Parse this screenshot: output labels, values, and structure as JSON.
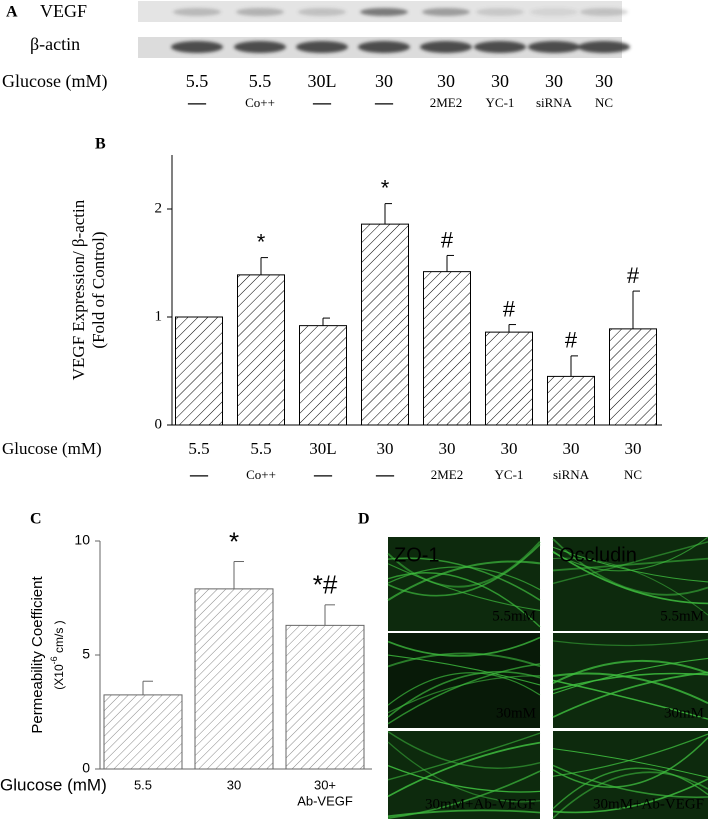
{
  "panel_a": {
    "label": "A",
    "rows": [
      "VEGF",
      "β-actin"
    ],
    "glucose_label": "Glucose (mM)",
    "glucose": [
      "5.5",
      "5.5",
      "30L",
      "30",
      "30",
      "30",
      "30",
      "30"
    ],
    "treatments": [
      "—",
      "Co++",
      "—",
      "—",
      "2ME2",
      "YC-1",
      "siRNA",
      "NC"
    ]
  },
  "chart_data": [
    {
      "type": "bar",
      "panel": "B",
      "y_label": [
        "VEGF Expression/ β-actin",
        "(Fold of Control)"
      ],
      "x_label": "Glucose (mM)",
      "categories": [
        "5.5",
        "5.5",
        "30L",
        "30",
        "30",
        "30",
        "30",
        "30"
      ],
      "treatments": [
        "—",
        "Co++",
        "—",
        "—",
        "2ME2",
        "YC-1",
        "siRNA",
        "NC"
      ],
      "values": [
        1.0,
        1.39,
        0.92,
        1.86,
        1.42,
        0.86,
        0.45,
        0.89
      ],
      "errors": [
        0,
        0.16,
        0.07,
        0.19,
        0.15,
        0.07,
        0.19,
        0.35
      ],
      "annotations": [
        null,
        "*",
        null,
        "*",
        "#",
        "#",
        "#",
        "#"
      ],
      "ylim": [
        0,
        2.5
      ],
      "yticks": [
        0,
        1,
        2
      ],
      "color": "#000000"
    },
    {
      "type": "bar",
      "panel": "C",
      "y_label": [
        "Permeability Coefficient",
        "(X10",
        "-6",
        " cm/s )"
      ],
      "x_label": "Glucose (mM)",
      "categories": [
        "5.5",
        "30",
        "30+"
      ],
      "treatments": [
        null,
        null,
        "Ab-VEGF"
      ],
      "values": [
        3.25,
        7.9,
        6.3
      ],
      "errors": [
        0.6,
        1.2,
        0.9
      ],
      "annotations": [
        null,
        "*",
        "*#"
      ],
      "ylim": [
        0,
        10
      ],
      "yticks": [
        0,
        5,
        10
      ],
      "color": "#777777"
    }
  ],
  "panel_d": {
    "label": "D",
    "columns": [
      "ZO-1",
      "Occludin"
    ],
    "rows": [
      "5.5mM",
      "30mM",
      "30mM+Ab-VEGF"
    ]
  }
}
